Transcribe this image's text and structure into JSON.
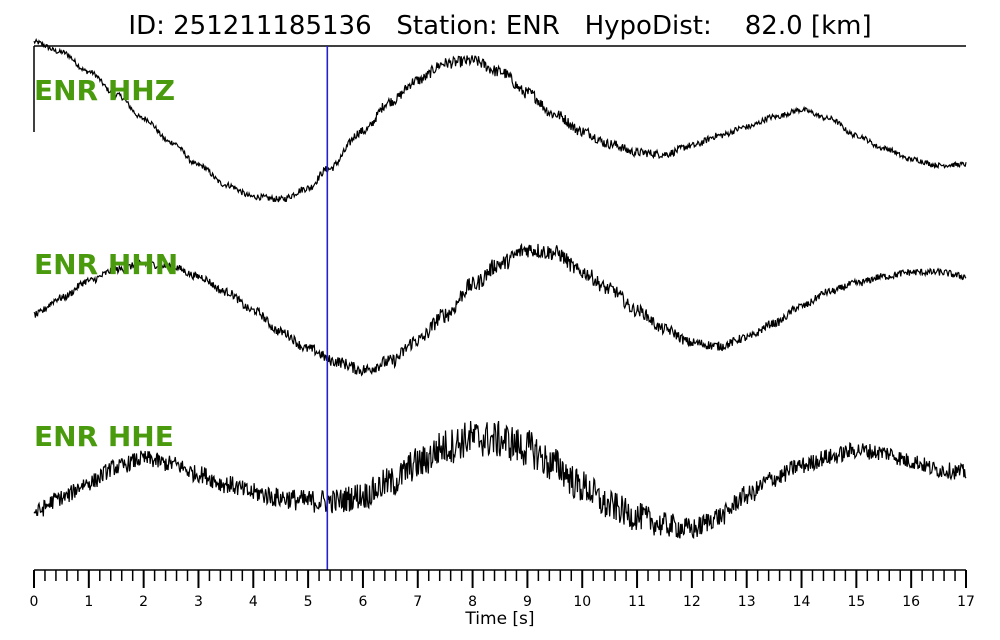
{
  "title": "ID: 251211185136   Station: ENR   HypoDist:    82.0 [km]",
  "chart_data": {
    "type": "line",
    "title": "ID: 251211185136   Station: ENR   HypoDist:    82.0 [km]",
    "xlabel": "Time [s]",
    "ylabel": "",
    "xlim": [
      0,
      17
    ],
    "x_ticks": [
      0,
      1,
      2,
      3,
      4,
      5,
      6,
      7,
      8,
      9,
      10,
      11,
      12,
      13,
      14,
      15,
      16,
      17
    ],
    "minor_tick_step": 0.2,
    "pick_time": 5.35,
    "pick_color": "#2222cc",
    "label_color": "#4a9a0e",
    "trace_color": "#000000",
    "series": [
      {
        "name": "ENR HHZ",
        "noise": 0.05,
        "points": [
          [
            0,
            1.0
          ],
          [
            0.5,
            0.88
          ],
          [
            1,
            0.65
          ],
          [
            1.5,
            0.38
          ],
          [
            2,
            0.1
          ],
          [
            2.5,
            -0.18
          ],
          [
            3,
            -0.45
          ],
          [
            3.5,
            -0.68
          ],
          [
            4,
            -0.82
          ],
          [
            4.5,
            -0.85
          ],
          [
            5,
            -0.72
          ],
          [
            5.35,
            -0.5
          ],
          [
            6,
            -0.05
          ],
          [
            6.5,
            0.3
          ],
          [
            7,
            0.55
          ],
          [
            7.5,
            0.75
          ],
          [
            8,
            0.78
          ],
          [
            8.5,
            0.65
          ],
          [
            9,
            0.4
          ],
          [
            9.5,
            0.15
          ],
          [
            10,
            -0.05
          ],
          [
            10.5,
            -0.2
          ],
          [
            11,
            -0.3
          ],
          [
            11.5,
            -0.32
          ],
          [
            12,
            -0.22
          ],
          [
            12.5,
            -0.1
          ],
          [
            13,
            0.0
          ],
          [
            13.5,
            0.12
          ],
          [
            14,
            0.2
          ],
          [
            14.5,
            0.1
          ],
          [
            15,
            -0.1
          ],
          [
            15.5,
            -0.25
          ],
          [
            16,
            -0.38
          ],
          [
            16.5,
            -0.45
          ],
          [
            17,
            -0.44
          ]
        ]
      },
      {
        "name": "ENR HHN",
        "noise": 0.07,
        "points": [
          [
            0,
            -0.15
          ],
          [
            0.5,
            0.05
          ],
          [
            1,
            0.25
          ],
          [
            1.5,
            0.38
          ],
          [
            2,
            0.45
          ],
          [
            2.5,
            0.42
          ],
          [
            3,
            0.3
          ],
          [
            3.5,
            0.12
          ],
          [
            4,
            -0.1
          ],
          [
            4.5,
            -0.35
          ],
          [
            5,
            -0.55
          ],
          [
            5.5,
            -0.7
          ],
          [
            6,
            -0.8
          ],
          [
            6.5,
            -0.7
          ],
          [
            7,
            -0.45
          ],
          [
            7.5,
            -0.15
          ],
          [
            8,
            0.2
          ],
          [
            8.5,
            0.45
          ],
          [
            9,
            0.62
          ],
          [
            9.5,
            0.58
          ],
          [
            10,
            0.35
          ],
          [
            10.5,
            0.15
          ],
          [
            11,
            -0.1
          ],
          [
            11.5,
            -0.32
          ],
          [
            12,
            -0.48
          ],
          [
            12.5,
            -0.52
          ],
          [
            13,
            -0.42
          ],
          [
            13.5,
            -0.25
          ],
          [
            14,
            -0.05
          ],
          [
            14.5,
            0.12
          ],
          [
            15,
            0.22
          ],
          [
            15.5,
            0.3
          ],
          [
            16,
            0.35
          ],
          [
            16.5,
            0.35
          ],
          [
            17,
            0.3
          ]
        ]
      },
      {
        "name": "ENR HHE",
        "noise": 0.16,
        "points": [
          [
            0,
            -0.45
          ],
          [
            0.5,
            -0.28
          ],
          [
            1,
            -0.1
          ],
          [
            1.5,
            0.08
          ],
          [
            2,
            0.18
          ],
          [
            2.5,
            0.12
          ],
          [
            3,
            0.0
          ],
          [
            3.5,
            -0.12
          ],
          [
            4,
            -0.22
          ],
          [
            4.5,
            -0.28
          ],
          [
            5,
            -0.32
          ],
          [
            5.5,
            -0.32
          ],
          [
            6,
            -0.25
          ],
          [
            6.5,
            -0.1
          ],
          [
            7,
            0.12
          ],
          [
            7.5,
            0.32
          ],
          [
            8,
            0.42
          ],
          [
            8.5,
            0.4
          ],
          [
            9,
            0.3
          ],
          [
            9.5,
            0.1
          ],
          [
            10,
            -0.15
          ],
          [
            10.5,
            -0.38
          ],
          [
            11,
            -0.5
          ],
          [
            11.5,
            -0.6
          ],
          [
            12,
            -0.65
          ],
          [
            12.5,
            -0.5
          ],
          [
            13,
            -0.25
          ],
          [
            13.5,
            -0.05
          ],
          [
            14,
            0.1
          ],
          [
            14.5,
            0.2
          ],
          [
            15,
            0.28
          ],
          [
            15.5,
            0.25
          ],
          [
            16,
            0.15
          ],
          [
            16.5,
            0.05
          ],
          [
            17,
            0.02
          ]
        ]
      }
    ]
  }
}
